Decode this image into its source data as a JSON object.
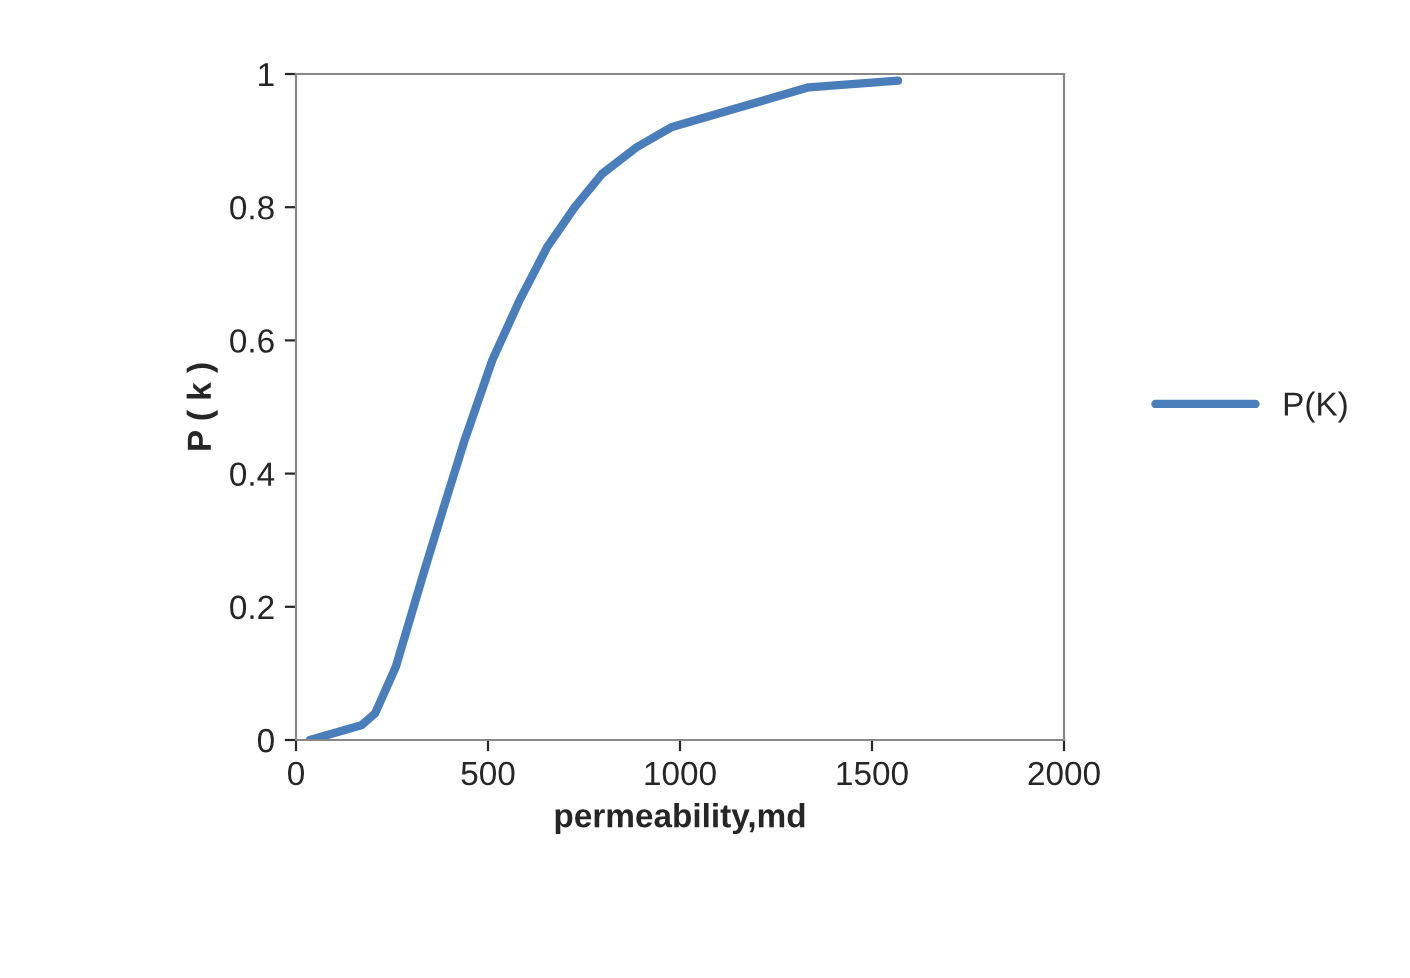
{
  "chart_data": {
    "type": "line",
    "xlabel": "permeability,md",
    "ylabel": "P ( k )",
    "x": [
      36,
      170,
      206,
      260,
      332,
      385,
      439,
      511,
      582,
      654,
      726,
      797,
      887,
      977,
      1156,
      1335,
      1568
    ],
    "series": [
      {
        "name": "P(K)",
        "color": "#4a7ebb",
        "values": [
          0,
          0.022,
          0.04,
          0.11,
          0.25,
          0.35,
          0.45,
          0.57,
          0.66,
          0.74,
          0.8,
          0.85,
          0.89,
          0.92,
          0.95,
          0.98,
          0.99
        ]
      }
    ],
    "xlim": [
      0,
      2000
    ],
    "xticks": [
      0,
      500,
      1000,
      1500,
      2000
    ],
    "ylim": [
      0,
      1
    ],
    "yticks": [
      0,
      {
        "value": 0.2,
        "label": "0.2"
      },
      {
        "value": 0.4,
        "label": "0.4"
      },
      {
        "value": 0.6,
        "label": "0.6"
      },
      {
        "value": 0.8,
        "label": "0.8"
      },
      1
    ],
    "grid": false,
    "legend": "right",
    "marker": "none",
    "line_style": "solid"
  }
}
